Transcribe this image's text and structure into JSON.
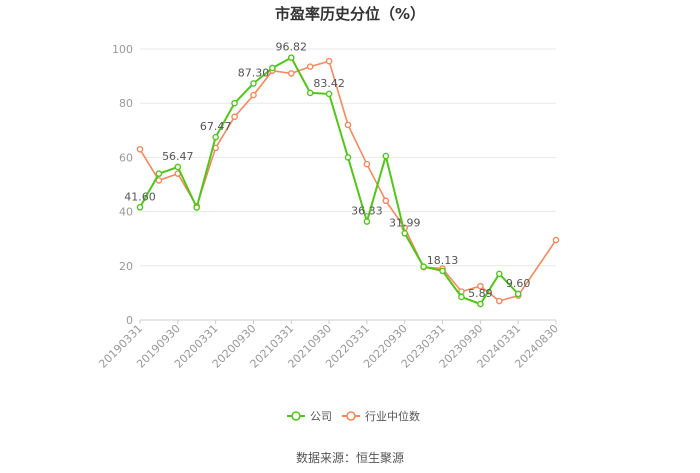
{
  "chart_data": {
    "type": "line",
    "title": "市盈率历史分位（%）",
    "x": [
      "20190331",
      "20190630",
      "20190930",
      "20191231",
      "20200331",
      "20200630",
      "20200930",
      "20201231",
      "20210331",
      "20210630",
      "20210930",
      "20211231",
      "20220331",
      "20220630",
      "20220930",
      "20221231",
      "20230331",
      "20230630",
      "20230930",
      "20231231",
      "20240331",
      "20240630",
      "20240830"
    ],
    "x_tick_labels": [
      "20190331",
      "20190930",
      "20200331",
      "20200930",
      "20210331",
      "20210930",
      "20220331",
      "20220930",
      "20230331",
      "20230930",
      "20240331",
      "20240830"
    ],
    "y_ticks": [
      0,
      20,
      40,
      60,
      80,
      100
    ],
    "ylim": [
      0,
      100
    ],
    "grid": true,
    "legend_position": "bottom",
    "series": [
      {
        "name": "公司",
        "color": "#52c41a",
        "values": [
          41.6,
          54.0,
          56.47,
          41.5,
          67.47,
          80.0,
          87.3,
          93.0,
          96.82,
          83.8,
          83.42,
          60.0,
          36.33,
          60.5,
          31.99,
          19.7,
          18.13,
          8.5,
          5.89,
          17.0,
          9.6,
          null,
          null
        ],
        "data_labels": [
          {
            "index": 0,
            "text": "41.60"
          },
          {
            "index": 2,
            "text": "56.47"
          },
          {
            "index": 4,
            "text": "67.47"
          },
          {
            "index": 6,
            "text": "87.30"
          },
          {
            "index": 8,
            "text": "96.82"
          },
          {
            "index": 10,
            "text": "83.42"
          },
          {
            "index": 12,
            "text": "36.33"
          },
          {
            "index": 14,
            "text": "31.99"
          },
          {
            "index": 16,
            "text": "18.13"
          },
          {
            "index": 18,
            "text": "5.89"
          },
          {
            "index": 20,
            "text": "9.60"
          }
        ]
      },
      {
        "name": "行业中位数",
        "color": "#f4895f",
        "values": [
          63.0,
          51.5,
          54.0,
          42.0,
          63.5,
          75.0,
          83.0,
          92.0,
          91.0,
          93.5,
          95.5,
          72.0,
          57.5,
          44.0,
          34.0,
          19.5,
          19.0,
          10.5,
          12.5,
          7.0,
          9.0,
          null,
          29.5
        ]
      }
    ]
  },
  "source_text": "数据来源：恒生聚源"
}
